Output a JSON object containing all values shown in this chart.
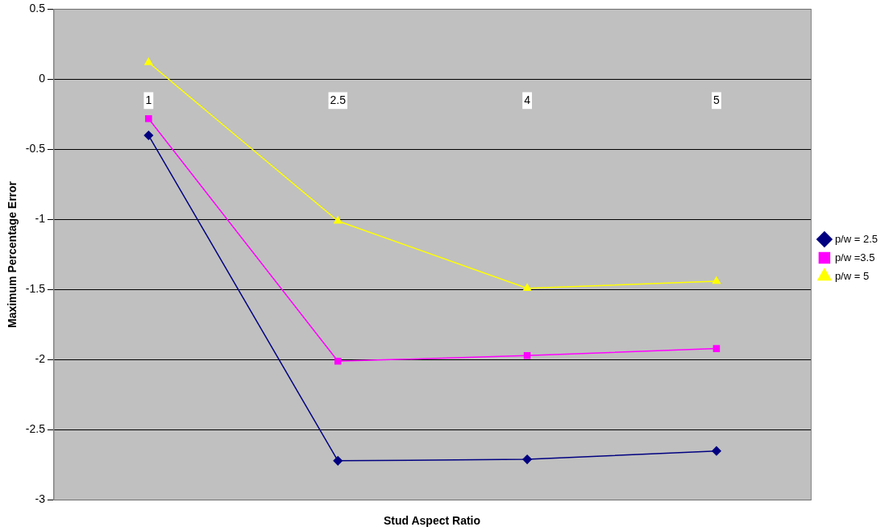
{
  "chart_data": {
    "type": "line",
    "xlabel": "Stud Aspect Ratio",
    "ylabel": "Maximum Percentage Error",
    "categories": [
      "1",
      "2.5",
      "4",
      "5"
    ],
    "series": [
      {
        "name": "p/w = 2.5",
        "color": "#000080",
        "marker": "diamond",
        "values": [
          -0.4,
          -2.72,
          -2.71,
          -2.65
        ]
      },
      {
        "name": "p/w =3.5",
        "color": "#ff00ff",
        "marker": "square",
        "values": [
          -0.28,
          -2.01,
          -1.97,
          -1.92
        ]
      },
      {
        "name": "p/w = 5",
        "color": "#ffff00",
        "marker": "triangle",
        "values": [
          0.12,
          -1.01,
          -1.49,
          -1.44
        ]
      }
    ],
    "ylim": [
      -3,
      0.5
    ],
    "yticks": [
      -3,
      -2.5,
      -2,
      -1.5,
      -1,
      -0.5,
      0,
      0.5
    ],
    "grid": "y",
    "legend": "right",
    "line_style": "solid"
  }
}
